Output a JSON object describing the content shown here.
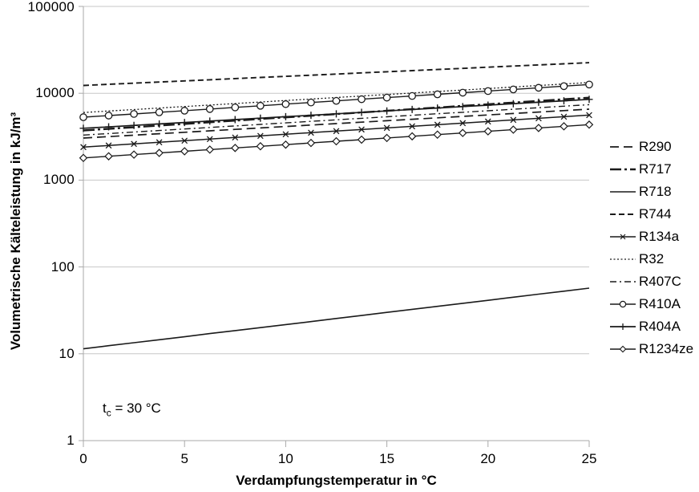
{
  "chart_data": {
    "type": "line",
    "title": "",
    "xlabel": "Verdampfungstemperatur in °C",
    "ylabel": "Volumetrische Kälteleistung in kJ/m³",
    "yscale": "log",
    "xlim": [
      0,
      25
    ],
    "ylim": [
      1,
      100000
    ],
    "x_ticks": [
      0,
      5,
      10,
      15,
      20,
      25
    ],
    "y_ticks": [
      1,
      10,
      100,
      1000,
      10000,
      100000
    ],
    "grid": "horizontal-only",
    "legend_position": "right",
    "annotation_text": "tc = 30 °C",
    "x": [
      0,
      1.25,
      2.5,
      3.75,
      5,
      6.25,
      7.5,
      8.75,
      10,
      11.25,
      12.5,
      13.75,
      15,
      16.25,
      17.5,
      18.75,
      20,
      21.25,
      22.5,
      23.75,
      25
    ],
    "series": [
      {
        "name": "R290",
        "line_style": "long-dash",
        "marker": null,
        "values": [
          3050,
          3169,
          3293,
          3421,
          3555,
          3694,
          3838,
          3988,
          4143,
          4305,
          4473,
          4648,
          4829,
          5018,
          5213,
          5417,
          5629,
          5848,
          6077,
          6314,
          6561
        ]
      },
      {
        "name": "R717",
        "line_style": "dash-dot-heavy",
        "marker": null,
        "values": [
          3730,
          3896,
          4069,
          4249,
          4438,
          4635,
          4841,
          5056,
          5280,
          5515,
          5760,
          6016,
          6283,
          6562,
          6853,
          7158,
          7476,
          7808,
          8154,
          8516,
          8895
        ]
      },
      {
        "name": "R718",
        "line_style": "solid",
        "marker": null,
        "values": [
          11.4,
          12.4,
          13.4,
          14.5,
          15.7,
          17.1,
          18.5,
          20.0,
          21.7,
          23.5,
          25.5,
          27.6,
          30.0,
          32.5,
          35.2,
          38.1,
          41.3,
          44.8,
          48.6,
          52.6,
          57.0
        ]
      },
      {
        "name": "R744",
        "line_style": "dash",
        "marker": null,
        "values": [
          12300,
          12678,
          13067,
          13468,
          13881,
          14307,
          14746,
          15199,
          15665,
          16146,
          16642,
          17153,
          17679,
          18222,
          18781,
          19357,
          19951,
          20564,
          21195,
          21845,
          22516
        ]
      },
      {
        "name": "R134a",
        "line_style": "solid",
        "marker": "x",
        "values": [
          2400,
          2504,
          2612,
          2725,
          2843,
          2966,
          3095,
          3229,
          3369,
          3514,
          3667,
          3825,
          3991,
          4164,
          4344,
          4532,
          4728,
          4933,
          5147,
          5369,
          5602
        ]
      },
      {
        "name": "R32",
        "line_style": "dot",
        "marker": null,
        "values": [
          6000,
          6244,
          6497,
          6761,
          7036,
          7321,
          7619,
          7928,
          8250,
          8585,
          8934,
          9296,
          9674,
          10066,
          10475,
          10900,
          11343,
          11804,
          12283,
          12782,
          13301
        ]
      },
      {
        "name": "R407C",
        "line_style": "dash-dot",
        "marker": null,
        "values": [
          3300,
          3436,
          3578,
          3725,
          3878,
          4038,
          4204,
          4377,
          4558,
          4745,
          4941,
          5144,
          5356,
          5577,
          5806,
          6045,
          6294,
          6554,
          6824,
          7105,
          7397
        ]
      },
      {
        "name": "R410A",
        "line_style": "solid",
        "marker": "circle",
        "values": [
          5300,
          5535,
          5780,
          6036,
          6303,
          6582,
          6874,
          7178,
          7496,
          7828,
          8175,
          8537,
          8915,
          9310,
          9722,
          10153,
          10603,
          11072,
          11563,
          12075,
          12610
        ]
      },
      {
        "name": "R404A",
        "line_style": "solid",
        "marker": "plus",
        "values": [
          3950,
          4104,
          4265,
          4432,
          4605,
          4785,
          4972,
          5166,
          5368,
          5578,
          5796,
          6023,
          6258,
          6503,
          6757,
          7021,
          7296,
          7581,
          7877,
          8185,
          8505
        ]
      },
      {
        "name": "R1234ze",
        "line_style": "solid",
        "marker": "diamond",
        "values": [
          1800,
          1881,
          1966,
          2055,
          2148,
          2245,
          2346,
          2452,
          2562,
          2678,
          2799,
          2925,
          3057,
          3195,
          3339,
          3490,
          3647,
          3812,
          3984,
          4164,
          4352
        ]
      }
    ]
  },
  "annotation": {
    "base": "t",
    "subscript": "c",
    "value": " = 30 °C"
  },
  "colors": {
    "line": "#1a1a1a",
    "grid": "#c7c7c7",
    "axis": "#a9a9a9",
    "background": "#ffffff",
    "text": "#000000"
  }
}
